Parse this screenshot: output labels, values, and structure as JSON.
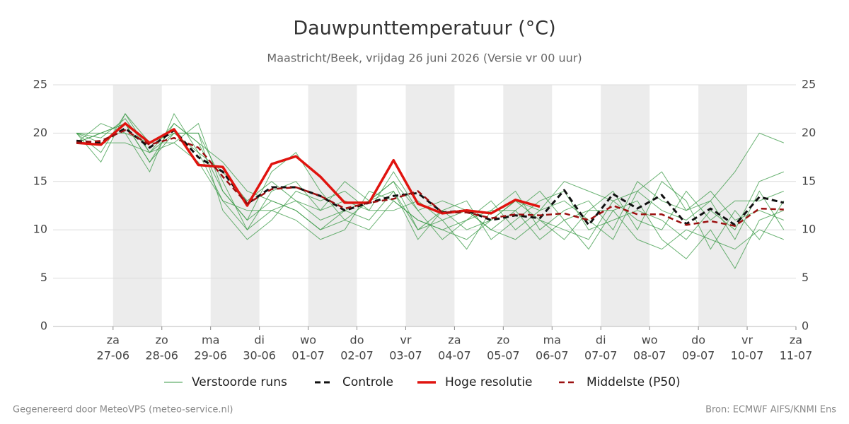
{
  "chart_data": {
    "type": "line",
    "title": "Dauwpunttemperatuur (°C)",
    "subtitle": "Maastricht/Beek, vrijdag 26 juni 2026 (Versie vr 00 uur)",
    "x": [
      0.25,
      0.75,
      1.25,
      1.75,
      2.25,
      2.75,
      3.25,
      3.75,
      4.25,
      4.75,
      5.25,
      5.75,
      6.25,
      6.75,
      7.25,
      7.75,
      8.25,
      8.75,
      9.25,
      9.75,
      10.25,
      10.75,
      11.25,
      11.75,
      12.25,
      12.75,
      13.25,
      13.75,
      14.25,
      14.75
    ],
    "xlim": [
      -0.23,
      15
    ],
    "xticks": [
      {
        "value": 1,
        "label": "za",
        "date": "27-06"
      },
      {
        "value": 2,
        "label": "zo",
        "date": "28-06"
      },
      {
        "value": 3,
        "label": "ma",
        "date": "29-06"
      },
      {
        "value": 4,
        "label": "di",
        "date": "30-06"
      },
      {
        "value": 5,
        "label": "wo",
        "date": "01-07"
      },
      {
        "value": 6,
        "label": "do",
        "date": "02-07"
      },
      {
        "value": 7,
        "label": "vr",
        "date": "03-07"
      },
      {
        "value": 8,
        "label": "za",
        "date": "04-07"
      },
      {
        "value": 9,
        "label": "zo",
        "date": "05-07"
      },
      {
        "value": 10,
        "label": "ma",
        "date": "06-07"
      },
      {
        "value": 11,
        "label": "di",
        "date": "07-07"
      },
      {
        "value": 12,
        "label": "wo",
        "date": "08-07"
      },
      {
        "value": 13,
        "label": "do",
        "date": "09-07"
      },
      {
        "value": 14,
        "label": "vr",
        "date": "10-07"
      },
      {
        "value": 15,
        "label": "za",
        "date": "11-07"
      }
    ],
    "ylim": [
      0,
      25
    ],
    "yticks": [
      0,
      5,
      10,
      15,
      20,
      25
    ],
    "grid": true,
    "ensemble": {
      "name": "Verstoorde runs",
      "color": "#3a9a45",
      "runs": [
        [
          20,
          19.5,
          21.5,
          18,
          21,
          19,
          14,
          11,
          13,
          12,
          10,
          12,
          13,
          15,
          10,
          11,
          12,
          10,
          12,
          9,
          11,
          8,
          12,
          13,
          9,
          7,
          10,
          6,
          11,
          12
        ],
        [
          19,
          20,
          21,
          17,
          20,
          20,
          15,
          10,
          14,
          15,
          12,
          13,
          12,
          16,
          12,
          9,
          11,
          13,
          10,
          12,
          13,
          11,
          9,
          14,
          12,
          11,
          13,
          9,
          14,
          10
        ],
        [
          20,
          18,
          22,
          19,
          19,
          17,
          13,
          12,
          12,
          11,
          9,
          10,
          14,
          13,
          11,
          10,
          9,
          11,
          13,
          11,
          9,
          12,
          14,
          10,
          15,
          13,
          8,
          12,
          9,
          13
        ],
        [
          19,
          21,
          20,
          16,
          22,
          18,
          16,
          13,
          15,
          13,
          11,
          12,
          11,
          14,
          9,
          12,
          13,
          9,
          11,
          13,
          14,
          10,
          11,
          12,
          11,
          9,
          12,
          10,
          15,
          16
        ],
        [
          20,
          19,
          19,
          18,
          20,
          20,
          12,
          9,
          11,
          14,
          13,
          14,
          12,
          12,
          13,
          11,
          8,
          12,
          14,
          10,
          12,
          13,
          10,
          15,
          13,
          12,
          14,
          11,
          12,
          11
        ],
        [
          19,
          20,
          21,
          17,
          21,
          19,
          17,
          14,
          13,
          12,
          10,
          11,
          13,
          15,
          12,
          13,
          12,
          10,
          9,
          11,
          10,
          9,
          13,
          11,
          10,
          14,
          11,
          13,
          13,
          14
        ],
        [
          20,
          17,
          22,
          18,
          19,
          21,
          14,
          11,
          16,
          18,
          14,
          11,
          10,
          13,
          11,
          10,
          11,
          12,
          12,
          14,
          11,
          12,
          12,
          9,
          8,
          10,
          9,
          8,
          10,
          9
        ],
        [
          20,
          20,
          20,
          19,
          20,
          18,
          13,
          10,
          12,
          13,
          12,
          15,
          13,
          14,
          10,
          12,
          10,
          11,
          13,
          12,
          15,
          14,
          13,
          14,
          16,
          12,
          13,
          16,
          20,
          19
        ]
      ]
    },
    "series": [
      {
        "name": "Controle",
        "color": "#111111",
        "dashed": true,
        "width": 3,
        "values": [
          19.2,
          19,
          20.5,
          18.5,
          20.3,
          17.5,
          16,
          12.7,
          14.4,
          14.4,
          13.5,
          12,
          12.8,
          13.5,
          13.8,
          11.8,
          12,
          11,
          11.5,
          11.2,
          14.1,
          10.5,
          13.7,
          12.2,
          13.6,
          10.6,
          12.2,
          10.5,
          13.4,
          12.8
        ]
      },
      {
        "name": "Hoge resolutie",
        "color": "#e0140f",
        "dashed": false,
        "width": 3.5,
        "values": [
          19,
          18.8,
          21,
          19,
          20.4,
          16.7,
          16.5,
          12.5,
          16.8,
          17.6,
          15.5,
          12.8,
          12.8,
          17.2,
          12.7,
          11.7,
          12,
          11.7,
          13.1,
          12.4,
          null,
          null,
          null,
          null,
          null,
          null,
          null,
          null,
          null,
          null
        ]
      },
      {
        "name": "Middelste (P50)",
        "color": "#9b1010",
        "dashed": true,
        "width": 2.5,
        "values": [
          19,
          19.2,
          20.3,
          18.8,
          19.5,
          18.5,
          15.5,
          12.7,
          14.2,
          14.4,
          13.5,
          12.2,
          12.8,
          13.2,
          14,
          11.8,
          11.8,
          11.2,
          11.6,
          11.5,
          11.7,
          11,
          12.5,
          11.6,
          11.6,
          10.5,
          10.9,
          10.4,
          12.2,
          12.1
        ]
      }
    ],
    "footer_left": "Gegenereerd door MeteoVPS (meteo-service.nl)",
    "footer_right": "Bron: ECMWF AIFS/KNMI Ens"
  }
}
